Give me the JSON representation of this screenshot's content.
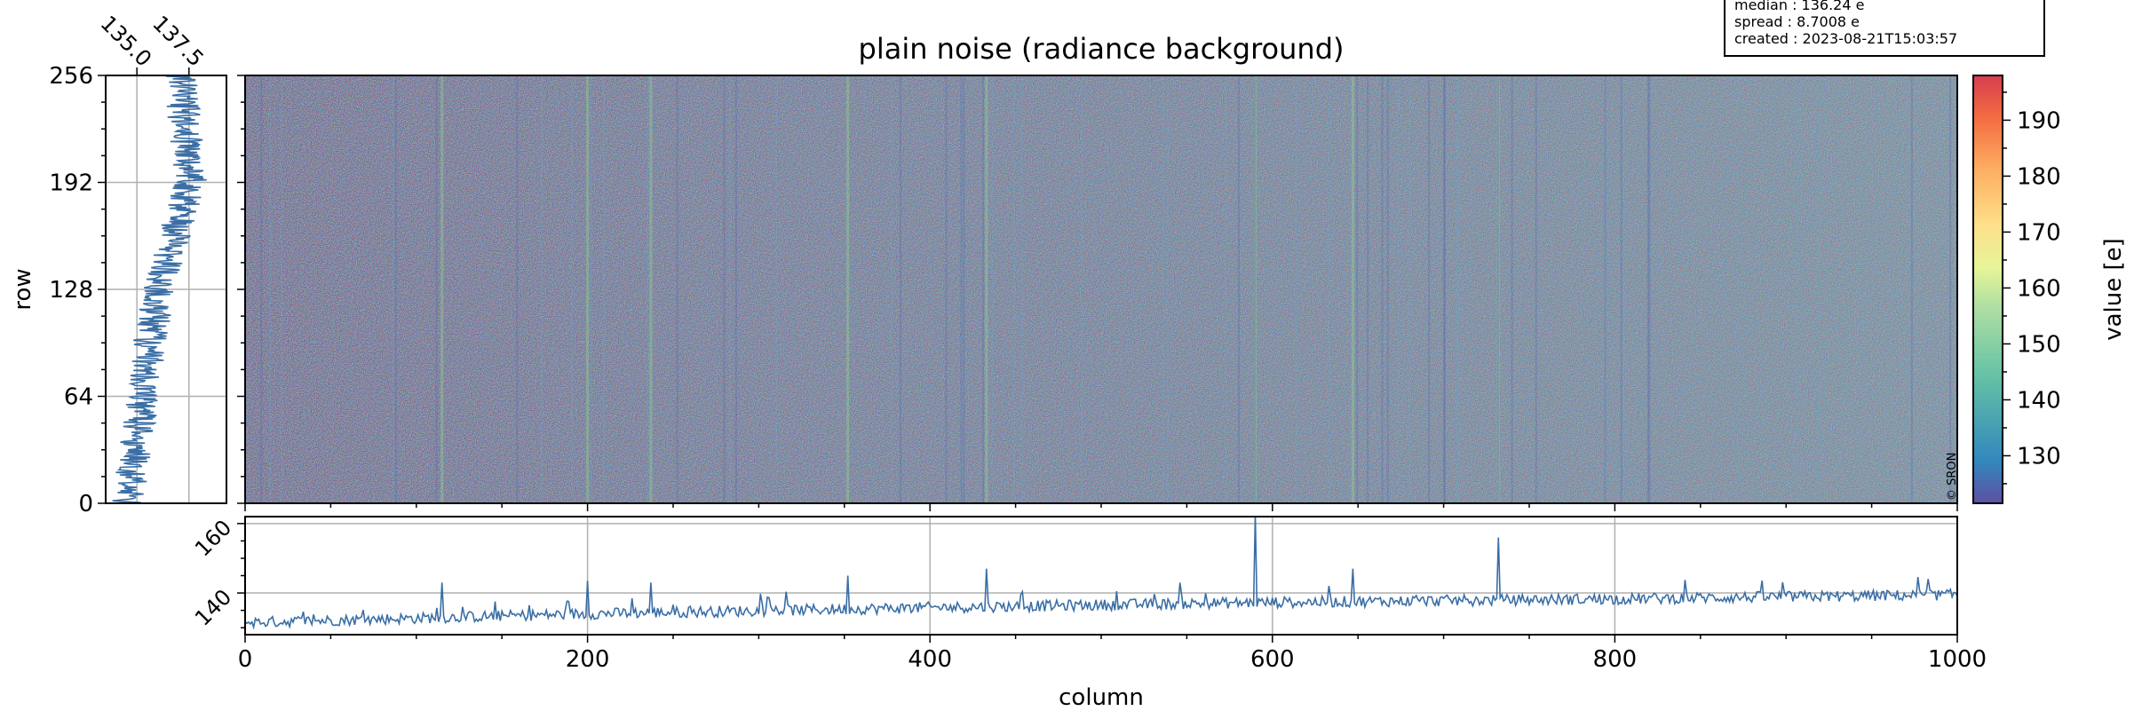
{
  "title": "plain noise (radiance background)",
  "info_box": {
    "lines": [
      "median : 136.24 e",
      "spread : 8.7008 e",
      "created : 2023-08-21T15:03:57"
    ]
  },
  "credit": "© SRON",
  "colormap": "Spectral_r (purple-blue-green-yellow-red)",
  "colors": {
    "line": "#3a6ea5",
    "grid": "#b0b0b0",
    "image_base": "#4f7ec0"
  },
  "chart_data": [
    {
      "id": "image",
      "type": "heatmap",
      "title": "plain noise (radiance background)",
      "xlabel": "",
      "ylabel": "",
      "xlim": [
        0,
        1000
      ],
      "ylim": [
        0,
        256
      ],
      "description_values": "noisy detector frame, values mostly 128-150 e with faint vertical column stripes",
      "bright_columns": [
        115,
        200,
        237,
        352,
        433,
        590,
        647,
        732
      ]
    },
    {
      "id": "row-profile",
      "type": "line",
      "xlabel": "",
      "ylabel": "row",
      "xlim": [
        133.5,
        139.3
      ],
      "ylim": [
        0,
        256
      ],
      "xticks": [
        "135.0",
        "137.5"
      ],
      "yticks": [
        "0",
        "64",
        "128",
        "192",
        "256"
      ],
      "trend": {
        "row": [
          0,
          32,
          64,
          96,
          128,
          160,
          192,
          224,
          256
        ],
        "value": [
          134.6,
          134.9,
          135.3,
          135.6,
          136.1,
          136.8,
          137.6,
          137.3,
          137.1
        ]
      }
    },
    {
      "id": "column-profile",
      "type": "line",
      "xlabel": "column",
      "ylabel": "",
      "xlim": [
        0,
        1000
      ],
      "ylim": [
        128,
        162
      ],
      "xticks": [
        "0",
        "200",
        "400",
        "600",
        "800",
        "1000"
      ],
      "yticks": [
        "140",
        "160"
      ],
      "trend": {
        "column": [
          0,
          200,
          400,
          600,
          800,
          1000
        ],
        "value": [
          131.5,
          134.0,
          135.8,
          137.3,
          138.3,
          139.5
        ]
      },
      "spikes": {
        "column": [
          115,
          200,
          237,
          352,
          433,
          590,
          647,
          732
        ],
        "value": [
          143,
          143.5,
          143,
          145,
          147,
          163,
          147,
          156
        ]
      }
    },
    {
      "id": "colorbar",
      "type": "heatmap",
      "ylabel": "value [e]",
      "ylim": [
        121.5,
        198
      ],
      "yticks": [
        "130",
        "140",
        "150",
        "160",
        "170",
        "180",
        "190"
      ]
    }
  ]
}
